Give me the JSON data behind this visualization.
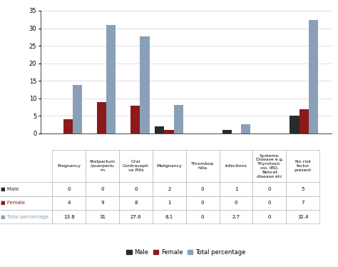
{
  "categories": [
    "Pregnancy",
    "Postpartum\n/puerperiu\nm",
    "Oral\nContracepti\nve Pills",
    "Malignancy",
    "Thrombop\nhilia",
    "Infections",
    "Systemic\nDisease e.g.\nThyrotoxic\nosi, IBD,\nBehcet\ndisease etc",
    "No risk\nfactor\npresent"
  ],
  "male": [
    0,
    0,
    0,
    2,
    0,
    1,
    0,
    5
  ],
  "female": [
    4,
    9,
    8,
    1,
    0,
    0,
    0,
    7
  ],
  "total": [
    13.8,
    31,
    27.6,
    8.1,
    0,
    2.7,
    0,
    32.4
  ],
  "table_male": [
    "0",
    "0",
    "0",
    "2",
    "0",
    "1",
    "0",
    "5"
  ],
  "table_female": [
    "4",
    "9",
    "8",
    "1",
    "0",
    "0",
    "0",
    "7"
  ],
  "table_total": [
    "13.8",
    "31",
    "27.6",
    "8.1",
    "0",
    "2.7",
    "0",
    "32.4"
  ],
  "color_male": "#2b2b2b",
  "color_female": "#8b1a1a",
  "color_total": "#8aa0b8",
  "ylim": [
    0,
    35
  ],
  "yticks": [
    0,
    5,
    10,
    15,
    20,
    25,
    30,
    35
  ],
  "bar_width": 0.28,
  "fig_width": 4.74,
  "fig_height": 3.74,
  "dpi": 100
}
